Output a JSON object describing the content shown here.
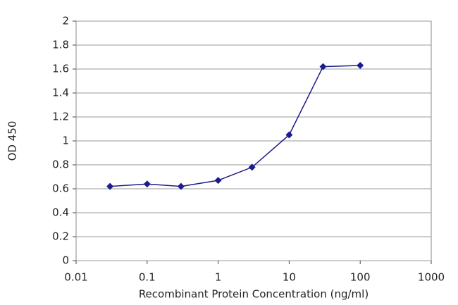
{
  "chart_data": {
    "type": "line",
    "x": [
      0.03,
      0.1,
      0.3,
      1,
      3,
      10,
      30,
      100
    ],
    "values": [
      0.62,
      0.64,
      0.62,
      0.67,
      0.78,
      1.05,
      1.62,
      1.63
    ],
    "color": "#1c1c8c",
    "xscale": "log",
    "xlim": [
      0.01,
      1000
    ],
    "xticks": [
      0.01,
      0.1,
      1,
      10,
      100,
      1000
    ],
    "ylim": [
      0,
      2
    ],
    "yticks": [
      0,
      0.2,
      0.4,
      0.6,
      0.8,
      1,
      1.2,
      1.4,
      1.6,
      1.8,
      2
    ],
    "grid": true,
    "xlabel": "Recombinant Protein Concentration (ng/ml)",
    "ylabel": "OD 450"
  }
}
